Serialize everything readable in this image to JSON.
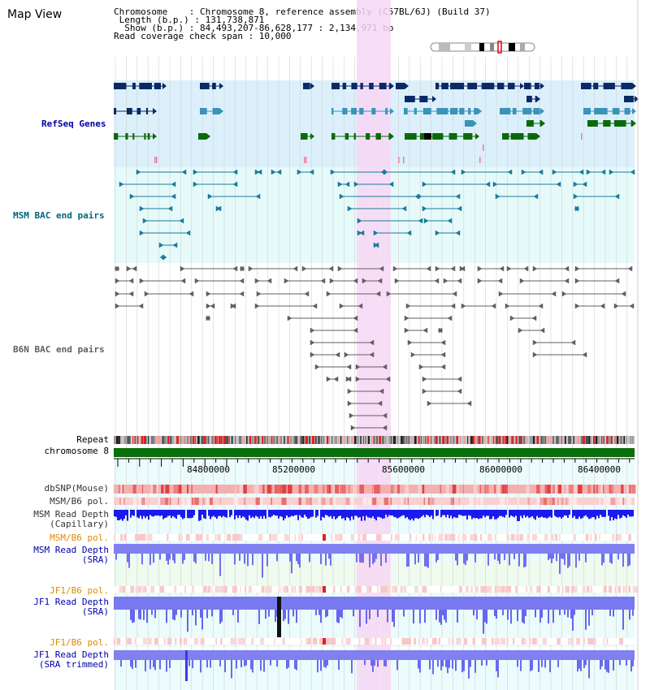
{
  "header": {
    "title": "Map View",
    "chromosome_line": "Chromosome    : Chromosome 8, reference assembly (C57BL/6J) (Build 37)",
    "length_line": " Length (b.p.) : 131,738,871",
    "show_line": "  Show (b.p.) : 84,493,207-86,628,177 : 2,134,971 bp",
    "coverage_line": "Read coverage check span : 10,000"
  },
  "tracks": {
    "refseq": "RefSeq Genes",
    "msm_bac": "MSM BAC end pairs",
    "b6n_bac": "B6N BAC end pairs",
    "repeat": "Repeat",
    "chromosome": "chromosome 8"
  },
  "axis": {
    "ticks": [
      "84800000",
      "85200000",
      "85600000",
      "86000000",
      "86400000"
    ]
  },
  "lower_tracks": {
    "dbsnp": "dbSNP(Mouse)",
    "msm_b6_pol_1": "MSM/B6 pol.",
    "msm_depth_cap_1": "MSM Read Depth",
    "msm_depth_cap_2": "(Capillary)",
    "msm_b6_pol_2": "MSM/B6 pol.",
    "msm_depth_sra_1": "MSM Read Depth",
    "msm_depth_sra_2": "(SRA)",
    "jf1_b6_pol_1": "JF1/B6 pol.",
    "jf1_depth_sra_1": "JF1 Read Depth",
    "jf1_depth_sra_2": "(SRA)",
    "jf1_b6_pol_2": "JF1/B6 pol.",
    "jf1_depth_trim_1": "JF1 Read Depth",
    "jf1_depth_trim_2": "(SRA trimmed)"
  },
  "colors": {
    "refseq_bg": "#dcf0fb",
    "msm_bg": "#e6fafa",
    "highlight": "#f7d7f4",
    "navy": "#0a2a66",
    "teal": "#3a93b8",
    "green": "#0a6a0a",
    "msm_pair": "#1a7a9a",
    "gray_pair": "#606060",
    "chrom_green": "#0a6e0a",
    "label_blue": "#0000aa",
    "label_teal": "#006677",
    "label_orange": "#e08a00",
    "depth_blue": "#1a1aee",
    "depth_light": "#7878f0"
  }
}
